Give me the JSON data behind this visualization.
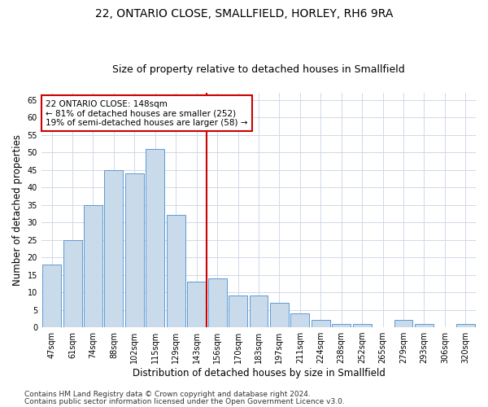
{
  "title": "22, ONTARIO CLOSE, SMALLFIELD, HORLEY, RH6 9RA",
  "subtitle": "Size of property relative to detached houses in Smallfield",
  "xlabel": "Distribution of detached houses by size in Smallfield",
  "ylabel": "Number of detached properties",
  "categories": [
    "47sqm",
    "61sqm",
    "74sqm",
    "88sqm",
    "102sqm",
    "115sqm",
    "129sqm",
    "143sqm",
    "156sqm",
    "170sqm",
    "183sqm",
    "197sqm",
    "211sqm",
    "224sqm",
    "238sqm",
    "252sqm",
    "265sqm",
    "279sqm",
    "293sqm",
    "306sqm",
    "320sqm"
  ],
  "values": [
    18,
    25,
    35,
    45,
    44,
    51,
    32,
    13,
    14,
    9,
    9,
    7,
    4,
    2,
    1,
    1,
    0,
    2,
    1,
    0,
    1
  ],
  "bar_color": "#c9daea",
  "bar_edge_color": "#5b9bd5",
  "vline_x_index": 7,
  "vline_color": "#cc0000",
  "annotation_text": "22 ONTARIO CLOSE: 148sqm\n← 81% of detached houses are smaller (252)\n19% of semi-detached houses are larger (58) →",
  "annotation_box_color": "#ffffff",
  "annotation_box_edge": "#cc0000",
  "ylim": [
    0,
    67
  ],
  "yticks": [
    0,
    5,
    10,
    15,
    20,
    25,
    30,
    35,
    40,
    45,
    50,
    55,
    60,
    65
  ],
  "footer1": "Contains HM Land Registry data © Crown copyright and database right 2024.",
  "footer2": "Contains public sector information licensed under the Open Government Licence v3.0.",
  "bg_color": "#ffffff",
  "grid_color": "#d0d8e8",
  "title_fontsize": 10,
  "subtitle_fontsize": 9,
  "axis_label_fontsize": 8.5,
  "tick_fontsize": 7,
  "footer_fontsize": 6.5,
  "annotation_fontsize": 7.5
}
